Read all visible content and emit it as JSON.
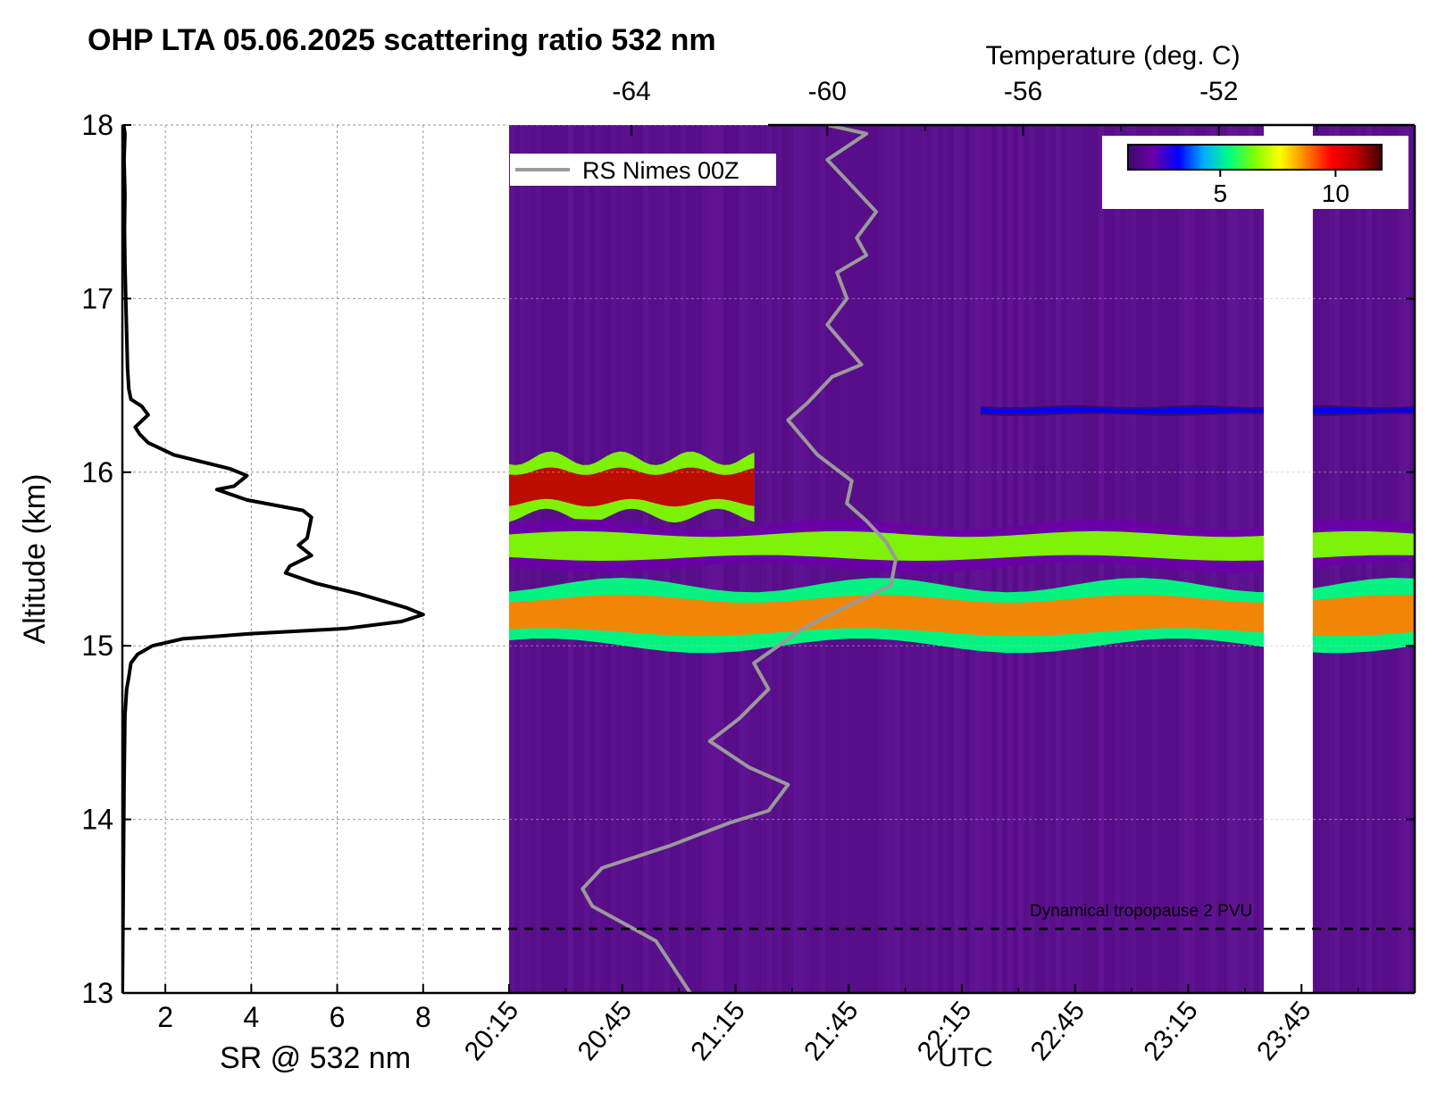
{
  "chart_data": [
    {
      "type": "line",
      "title": "OHP LTA 05.06.2025 scattering ratio 532 nm",
      "xlabel": "SR @ 532 nm",
      "ylabel": "Altitude (km)",
      "xlim": [
        1,
        10
      ],
      "ylim": [
        13,
        18
      ],
      "xticks": [
        2,
        4,
        6,
        8
      ],
      "yticks": [
        13,
        14,
        15,
        16,
        17,
        18
      ],
      "grid": true,
      "series": [
        {
          "x": [
            1.0,
            1.02,
            1.04,
            1.06,
            1.1,
            1.15,
            1.2,
            1.35,
            1.7,
            2.4,
            4.0,
            6.2,
            7.5,
            8.0,
            7.6,
            6.5,
            5.5,
            4.8,
            4.9,
            5.4,
            5.1,
            5.3,
            5.4,
            5.2,
            3.9,
            3.2,
            3.6,
            3.9,
            3.5,
            2.2,
            1.6,
            1.4,
            1.3,
            1.6,
            1.45,
            1.2,
            1.15,
            1.12,
            1.1,
            1.08,
            1.06,
            1.05,
            1.06,
            1.04,
            1.06,
            1.03
          ],
          "y": [
            13.0,
            13.6,
            14.2,
            14.6,
            14.75,
            14.82,
            14.9,
            14.95,
            15.0,
            15.04,
            15.07,
            15.1,
            15.14,
            15.18,
            15.22,
            15.3,
            15.36,
            15.42,
            15.46,
            15.52,
            15.58,
            15.62,
            15.74,
            15.78,
            15.84,
            15.9,
            15.92,
            15.98,
            16.02,
            16.1,
            16.17,
            16.22,
            16.26,
            16.33,
            16.38,
            16.42,
            16.48,
            16.6,
            16.8,
            17.0,
            17.2,
            17.4,
            17.6,
            17.8,
            17.95,
            18.0
          ]
        }
      ]
    },
    {
      "type": "heatmap",
      "xlabel": "UTC",
      "ylabel": "Altitude (km)",
      "xlim": [
        "20:15",
        "00:15"
      ],
      "ylim": [
        13,
        18
      ],
      "xticks": [
        "20:15",
        "20:45",
        "21:15",
        "21:45",
        "22:15",
        "22:45",
        "23:15",
        "23:45"
      ],
      "xtick_labels": [
        "20:15",
        "20:45",
        "21:15",
        "21:45",
        "22:15",
        "22:45",
        "23:15",
        "23:45"
      ],
      "zlabel": "scattering ratio",
      "colorbar": {
        "range": [
          1,
          12
        ],
        "ticks": [
          5,
          10
        ],
        "colors": [
          "#3b0a6b",
          "#6a00a8",
          "#0000ff",
          "#00b0ff",
          "#00ff80",
          "#80ff00",
          "#ffff00",
          "#ff8000",
          "#ff0000",
          "#c00000",
          "#400000"
        ],
        "placement": "top-right"
      },
      "data_gap": [
        "23:35",
        "23:48"
      ],
      "layers": [
        {
          "name": "upper faint layer",
          "sr": 3,
          "start": "22:20",
          "end": "00:15",
          "base_km": 16.33,
          "top_km": 16.38
        },
        {
          "name": "upper aerosol layer",
          "sr": 11,
          "start": "20:15",
          "end": "21:20",
          "base_km": 15.75,
          "top_km": 16.08
        },
        {
          "name": "main aerosol layer",
          "sr": 9,
          "start": "20:15",
          "end": "00:15",
          "base_km": 15.0,
          "top_km": 15.35
        },
        {
          "name": "middle aerosol layer",
          "sr": 6,
          "start": "20:15",
          "end": "00:15",
          "base_km": 15.45,
          "top_km": 15.7
        }
      ],
      "overlay_line": {
        "name": "RS Nimes 00Z",
        "color": "#999999",
        "axis_label": "Temperature (deg. C)",
        "axis_ticks": [
          -64,
          -60,
          -56,
          -52
        ],
        "xlim": [
          -66.5,
          -48.0
        ],
        "temperature": [
          -62.8,
          -63.5,
          -64.8,
          -65.0,
          -64.6,
          -63.2,
          -62.0,
          -61.2,
          -60.8,
          -61.6,
          -62.4,
          -61.8,
          -61.2,
          -61.5,
          -61.0,
          -60.5,
          -59.8,
          -59.2,
          -58.7,
          -58.6,
          -58.8,
          -59.2,
          -59.6,
          -59.5,
          -60.2,
          -60.8,
          -60.4,
          -59.9,
          -59.3,
          -60.0,
          -59.6,
          -59.8,
          -59.2,
          -59.4,
          -59.0,
          -59.5,
          -60.0,
          -59.2,
          -60.0
        ],
        "altitude_km": [
          13.0,
          13.3,
          13.5,
          13.6,
          13.72,
          13.85,
          13.98,
          14.05,
          14.2,
          14.3,
          14.45,
          14.58,
          14.75,
          14.9,
          15.0,
          15.1,
          15.2,
          15.28,
          15.35,
          15.5,
          15.6,
          15.72,
          15.82,
          15.95,
          16.1,
          16.3,
          16.4,
          16.55,
          16.62,
          16.85,
          17.0,
          17.15,
          17.25,
          17.35,
          17.5,
          17.65,
          17.8,
          17.95,
          18.0
        ]
      },
      "annotations": [
        {
          "text": "Dynamical tropopause 2 PVU",
          "altitude_km": 13.37
        }
      ],
      "legend": {
        "entries": [
          "RS Nimes 00Z"
        ],
        "placement": "top-left"
      }
    }
  ]
}
